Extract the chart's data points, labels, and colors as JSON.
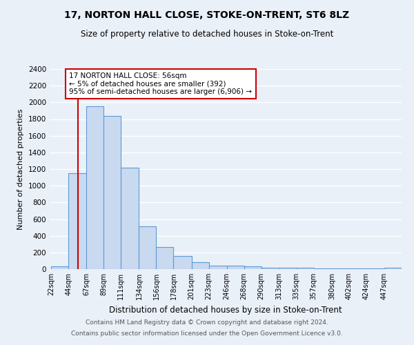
{
  "title1": "17, NORTON HALL CLOSE, STOKE-ON-TRENT, ST6 8LZ",
  "title2": "Size of property relative to detached houses in Stoke-on-Trent",
  "xlabel": "Distribution of detached houses by size in Stoke-on-Trent",
  "ylabel": "Number of detached properties",
  "footnote1": "Contains HM Land Registry data © Crown copyright and database right 2024.",
  "footnote2": "Contains public sector information licensed under the Open Government Licence v3.0.",
  "bins": [
    22,
    44,
    67,
    89,
    111,
    134,
    156,
    178,
    201,
    223,
    246,
    268,
    290,
    313,
    335,
    357,
    380,
    402,
    424,
    447,
    469
  ],
  "counts": [
    30,
    1150,
    1950,
    1840,
    1220,
    515,
    265,
    155,
    85,
    45,
    40,
    35,
    20,
    20,
    15,
    10,
    10,
    5,
    5,
    20
  ],
  "bar_color": "#c9d9ef",
  "bar_edge_color": "#5b9bd5",
  "vline_x": 56,
  "vline_color": "#cc0000",
  "annotation_text": "17 NORTON HALL CLOSE: 56sqm\n← 5% of detached houses are smaller (392)\n95% of semi-detached houses are larger (6,906) →",
  "annotation_box_color": "#ffffff",
  "annotation_box_edge": "#cc0000",
  "ylim": [
    0,
    2400
  ],
  "yticks": [
    0,
    200,
    400,
    600,
    800,
    1000,
    1200,
    1400,
    1600,
    1800,
    2000,
    2200,
    2400
  ],
  "background_color": "#eaf0f8",
  "grid_color": "#ffffff",
  "title1_fontsize": 10,
  "title2_fontsize": 8.5,
  "ylabel_fontsize": 8,
  "xlabel_fontsize": 8.5,
  "tick_fontsize": 7,
  "footnote_fontsize": 6.5,
  "annot_fontsize": 7.5
}
